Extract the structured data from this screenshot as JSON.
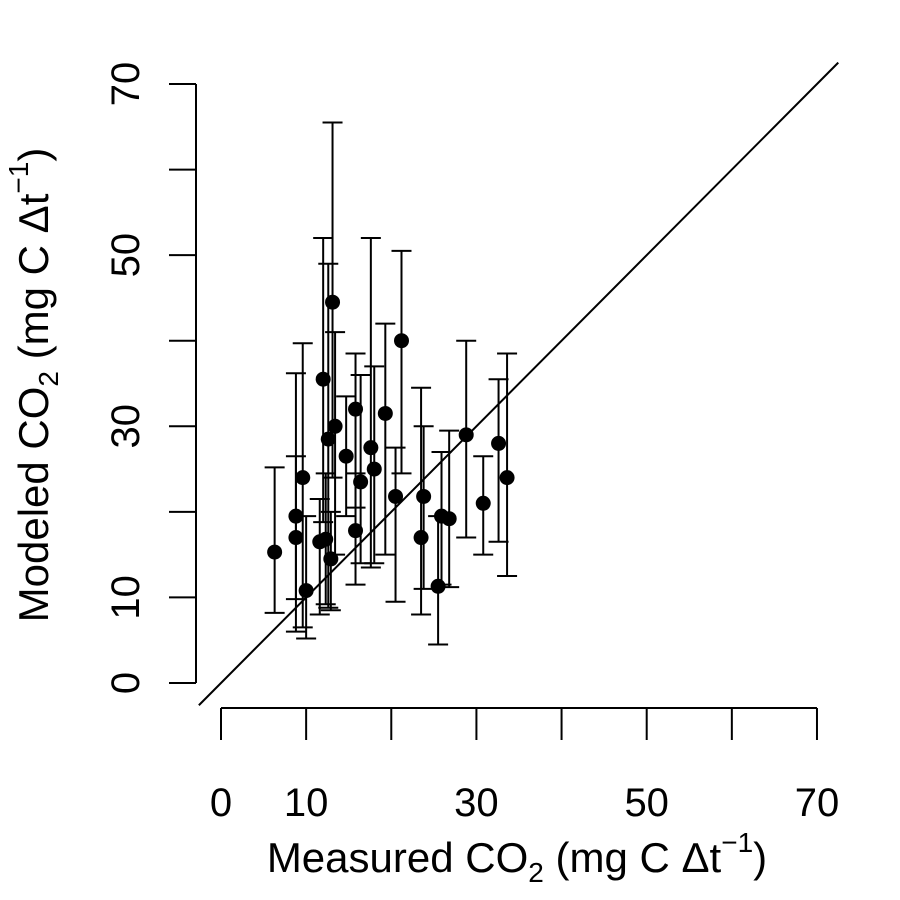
{
  "chart_data": {
    "type": "scatter",
    "title": "",
    "xlabel": {
      "main": "Measured CO",
      "sub": "2",
      "unit_open": " (mg C Δt",
      "sup": "−1",
      "unit_close": ")"
    },
    "ylabel": {
      "main": "Modeled CO",
      "sub": "2",
      "unit_open": " (mg C Δt",
      "sup": "−1",
      "unit_close": ")"
    },
    "xlim": [
      0,
      70
    ],
    "ylim": [
      0,
      70
    ],
    "xticks": [
      0,
      10,
      20,
      30,
      40,
      50,
      60,
      70
    ],
    "xtick_labels": [
      "0",
      "10",
      "",
      "30",
      "",
      "50",
      "",
      "70"
    ],
    "yticks": [
      0,
      10,
      20,
      30,
      40,
      50,
      60,
      70
    ],
    "ytick_labels": [
      "0",
      "10",
      "",
      "30",
      "",
      "50",
      "",
      "70"
    ],
    "reference_line": "1:1",
    "error_bars": true,
    "grid": false,
    "points": [
      {
        "x": 6.3,
        "y": 15.3,
        "lo": 8.2,
        "hi": 25.2
      },
      {
        "x": 8.8,
        "y": 19.5,
        "lo": 9.8,
        "hi": 26.5
      },
      {
        "x": 8.8,
        "y": 17.0,
        "lo": 6.0,
        "hi": 36.2
      },
      {
        "x": 9.6,
        "y": 24.0,
        "lo": 6.5,
        "hi": 39.7
      },
      {
        "x": 10.0,
        "y": 10.8,
        "lo": 5.2,
        "hi": 19.5
      },
      {
        "x": 11.6,
        "y": 16.5,
        "lo": 8.0,
        "hi": 21.5
      },
      {
        "x": 12.0,
        "y": 35.5,
        "lo": 18.8,
        "hi": 52.0
      },
      {
        "x": 12.3,
        "y": 16.8,
        "lo": 9.2,
        "hi": 24.5
      },
      {
        "x": 12.6,
        "y": 28.5,
        "lo": 8.8,
        "hi": 49.0
      },
      {
        "x": 12.9,
        "y": 14.5,
        "lo": 8.5,
        "hi": 20.0
      },
      {
        "x": 13.1,
        "y": 44.5,
        "lo": 24.0,
        "hi": 65.5
      },
      {
        "x": 13.4,
        "y": 30.0,
        "lo": 15.0,
        "hi": 41.0
      },
      {
        "x": 14.7,
        "y": 26.5,
        "lo": 19.5,
        "hi": 33.5
      },
      {
        "x": 15.8,
        "y": 32.0,
        "lo": 20.5,
        "hi": 38.5
      },
      {
        "x": 15.8,
        "y": 17.8,
        "lo": 11.5,
        "hi": 24.5
      },
      {
        "x": 16.4,
        "y": 23.5,
        "lo": 14.0,
        "hi": 36.0
      },
      {
        "x": 17.6,
        "y": 27.5,
        "lo": 13.5,
        "hi": 52.0
      },
      {
        "x": 18.0,
        "y": 25.0,
        "lo": 14.0,
        "hi": 37.0
      },
      {
        "x": 19.3,
        "y": 31.5,
        "lo": 15.0,
        "hi": 42.0
      },
      {
        "x": 20.5,
        "y": 21.8,
        "lo": 9.5,
        "hi": 27.5
      },
      {
        "x": 21.2,
        "y": 40.0,
        "lo": 24.5,
        "hi": 50.5
      },
      {
        "x": 23.5,
        "y": 17.0,
        "lo": 8.0,
        "hi": 34.5
      },
      {
        "x": 23.8,
        "y": 21.8,
        "lo": 11.0,
        "hi": 30.0
      },
      {
        "x": 25.5,
        "y": 11.3,
        "lo": 4.5,
        "hi": 19.5
      },
      {
        "x": 25.9,
        "y": 19.5,
        "lo": 11.5,
        "hi": 27.0
      },
      {
        "x": 26.8,
        "y": 19.2,
        "lo": 11.2,
        "hi": 29.5
      },
      {
        "x": 28.8,
        "y": 29.0,
        "lo": 17.0,
        "hi": 40.0
      },
      {
        "x": 30.8,
        "y": 21.0,
        "lo": 15.0,
        "hi": 26.5
      },
      {
        "x": 32.6,
        "y": 28.0,
        "lo": 16.5,
        "hi": 35.5
      },
      {
        "x": 33.6,
        "y": 24.0,
        "lo": 12.5,
        "hi": 38.5
      }
    ]
  }
}
